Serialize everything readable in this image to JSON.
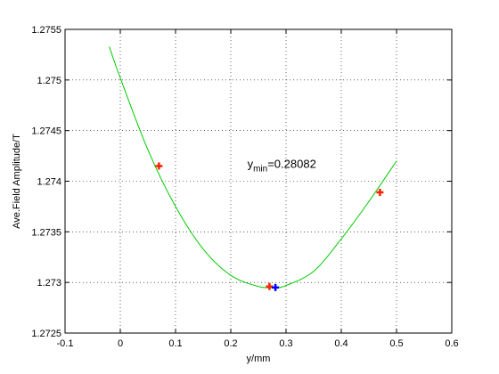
{
  "chart_data": {
    "type": "line",
    "title": "",
    "xlabel": "y/mm",
    "ylabel": "Ave.Field Amplitude/T",
    "xlim": [
      -0.1,
      0.6
    ],
    "ylim": [
      1.2725,
      1.2755
    ],
    "x_ticks": [
      -0.1,
      0,
      0.1,
      0.2,
      0.3,
      0.4,
      0.5,
      0.6
    ],
    "x_tick_labels": [
      "-0.1",
      "0",
      "0.1",
      "0.2",
      "0.3",
      "0.4",
      "0.5",
      "0.6"
    ],
    "y_ticks": [
      1.2725,
      1.273,
      1.2735,
      1.274,
      1.2745,
      1.275,
      1.2755
    ],
    "y_tick_labels": [
      "1.2725",
      "1.273",
      "1.2735",
      "1.274",
      "1.2745",
      "1.275",
      "1.2755"
    ],
    "grid": true,
    "colors": {
      "fit": "#00cc00",
      "measured": "#ff2200",
      "minimum": "#0000ff",
      "background": "#ffffff"
    },
    "fit_curve": {
      "x": [
        -0.02,
        0.0,
        0.05,
        0.1,
        0.15,
        0.2,
        0.25,
        0.28082,
        0.3,
        0.35,
        0.4,
        0.45,
        0.5
      ],
      "y": [
        1.27533,
        1.27502,
        1.27431,
        1.27375,
        1.27333,
        1.27307,
        1.27296,
        1.27295,
        1.27297,
        1.27311,
        1.27343,
        1.2738,
        1.2742
      ]
    },
    "measured_points": {
      "x": [
        0.07,
        0.27,
        0.47
      ],
      "y": [
        1.27415,
        1.27296,
        1.27389
      ]
    },
    "minimum_point": {
      "x": 0.28082,
      "y": 1.27295
    },
    "annotation": {
      "prefix": "y",
      "subscript": "min",
      "value": "=0.28082",
      "x": 0.23,
      "y": 1.27413
    }
  }
}
